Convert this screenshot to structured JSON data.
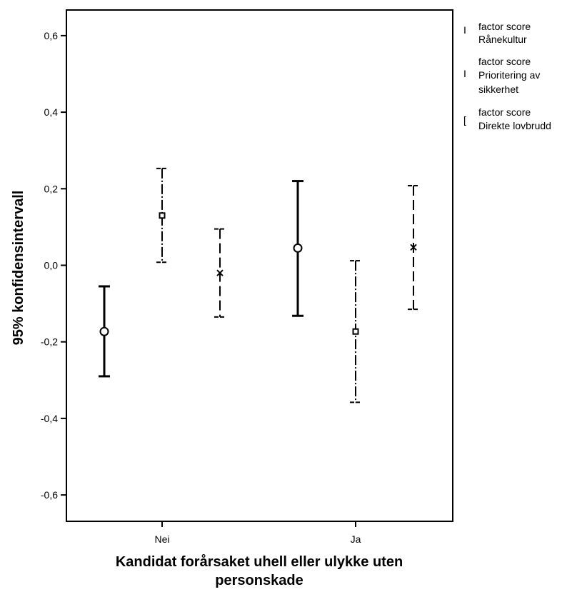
{
  "chart_data": {
    "type": "errorbar",
    "xlabel": "Kandidat forårsaket uhell eller ulykke uten personskade",
    "ylabel": "95% konfidensintervall",
    "categories": [
      "Nei",
      "Ja"
    ],
    "ylim": [
      -0.7,
      0.66
    ],
    "yticks": [
      -0.6,
      -0.4,
      -0.2,
      0.0,
      0.2,
      0.4,
      0.6
    ],
    "ytick_labels": [
      "-0,6",
      "-0,4",
      "-0,2",
      "0,0",
      "0,2",
      "0,4",
      "0,6"
    ],
    "grid": false,
    "legend_position": "right",
    "series": [
      {
        "name_lines": [
          "factor score",
          "Rånekultur"
        ],
        "marker": "circle",
        "line_style": "solid",
        "values": [
          {
            "category": "Nei",
            "mean": -0.173,
            "lower": -0.29,
            "upper": -0.055
          },
          {
            "category": "Ja",
            "mean": 0.045,
            "lower": -0.132,
            "upper": 0.22
          }
        ]
      },
      {
        "name_lines": [
          "factor score",
          "Prioritering av",
          "sikkerhet"
        ],
        "marker": "square",
        "line_style": "dashdot",
        "values": [
          {
            "category": "Nei",
            "mean": 0.13,
            "lower": 0.008,
            "upper": 0.253
          },
          {
            "category": "Ja",
            "mean": -0.173,
            "lower": -0.358,
            "upper": 0.012
          }
        ]
      },
      {
        "name_lines": [
          "factor score",
          "Direkte lovbrudd"
        ],
        "marker": "x",
        "line_style": "dashed",
        "values": [
          {
            "category": "Nei",
            "mean": -0.02,
            "lower": -0.135,
            "upper": 0.095
          },
          {
            "category": "Ja",
            "mean": 0.047,
            "lower": -0.115,
            "upper": 0.208
          }
        ]
      }
    ]
  }
}
